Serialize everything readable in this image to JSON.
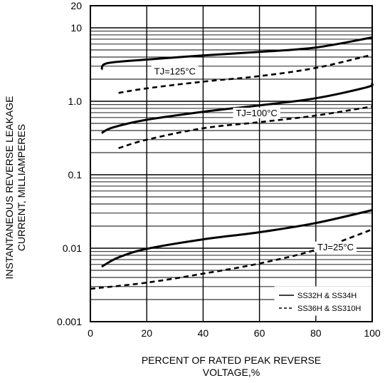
{
  "chart_data": {
    "type": "line",
    "title": "",
    "xlabel_line1": "PERCENT OF RATED PEAK REVERSE",
    "xlabel_line2": "VOLTAGE,%",
    "ylabel_line1": "INSTANTANEOUS REVERSE LEAKAGE",
    "ylabel_line2": "CURRENT, MILLIAMPERES",
    "xlim": [
      0,
      100
    ],
    "ylim": [
      0.001,
      20
    ],
    "yscale": "log",
    "grid": true,
    "x_ticks": [
      "0",
      "20",
      "40",
      "60",
      "80",
      "100"
    ],
    "y_ticks": [
      {
        "value": 0.001,
        "label": "0.001"
      },
      {
        "value": 0.01,
        "label": "0.01"
      },
      {
        "value": 0.1,
        "label": "0.1"
      },
      {
        "value": 1,
        "label": "1.0"
      },
      {
        "value": 10,
        "label": "10"
      },
      {
        "value": 20,
        "label": "20"
      }
    ],
    "legend": {
      "position": "bottom-right",
      "entries": [
        {
          "label": "SS32H & SS34H",
          "style": "solid"
        },
        {
          "label": "SS36H & SS310H",
          "style": "dashed"
        }
      ]
    },
    "annotations": [
      {
        "text": "TJ=125°C",
        "x": 30,
        "y": 2.6
      },
      {
        "text": "TJ=100°C",
        "x": 59,
        "y": 0.7
      },
      {
        "text": "TJ=25°C",
        "x": 87,
        "y": 0.0105
      }
    ],
    "series": [
      {
        "group": "TJ=125°C",
        "style": "solid",
        "x": [
          4,
          6,
          20,
          40,
          60,
          80,
          100
        ],
        "y": [
          2.7,
          3.3,
          3.7,
          4.2,
          4.7,
          5.4,
          7.4
        ]
      },
      {
        "group": "TJ=125°C",
        "style": "dashed",
        "x": [
          10,
          20,
          40,
          60,
          80,
          100
        ],
        "y": [
          1.3,
          1.5,
          1.85,
          2.2,
          2.85,
          4.3
        ]
      },
      {
        "group": "TJ=100°C",
        "style": "solid",
        "x": [
          4,
          8,
          20,
          40,
          60,
          80,
          98,
          100
        ],
        "y": [
          0.37,
          0.44,
          0.56,
          0.72,
          0.88,
          1.1,
          1.55,
          1.75
        ]
      },
      {
        "group": "TJ=100°C",
        "style": "dashed",
        "x": [
          10,
          20,
          40,
          60,
          80,
          100
        ],
        "y": [
          0.23,
          0.3,
          0.43,
          0.52,
          0.64,
          0.85
        ]
      },
      {
        "group": "TJ=25°C",
        "style": "solid",
        "x": [
          4,
          10,
          20,
          40,
          60,
          80,
          100
        ],
        "y": [
          0.0056,
          0.0075,
          0.0098,
          0.0132,
          0.0165,
          0.022,
          0.033
        ]
      },
      {
        "group": "TJ=25°C",
        "style": "dashed",
        "x": [
          0,
          20,
          40,
          60,
          80,
          100
        ],
        "y": [
          0.0028,
          0.0034,
          0.0045,
          0.0062,
          0.0095,
          0.018
        ]
      }
    ]
  }
}
